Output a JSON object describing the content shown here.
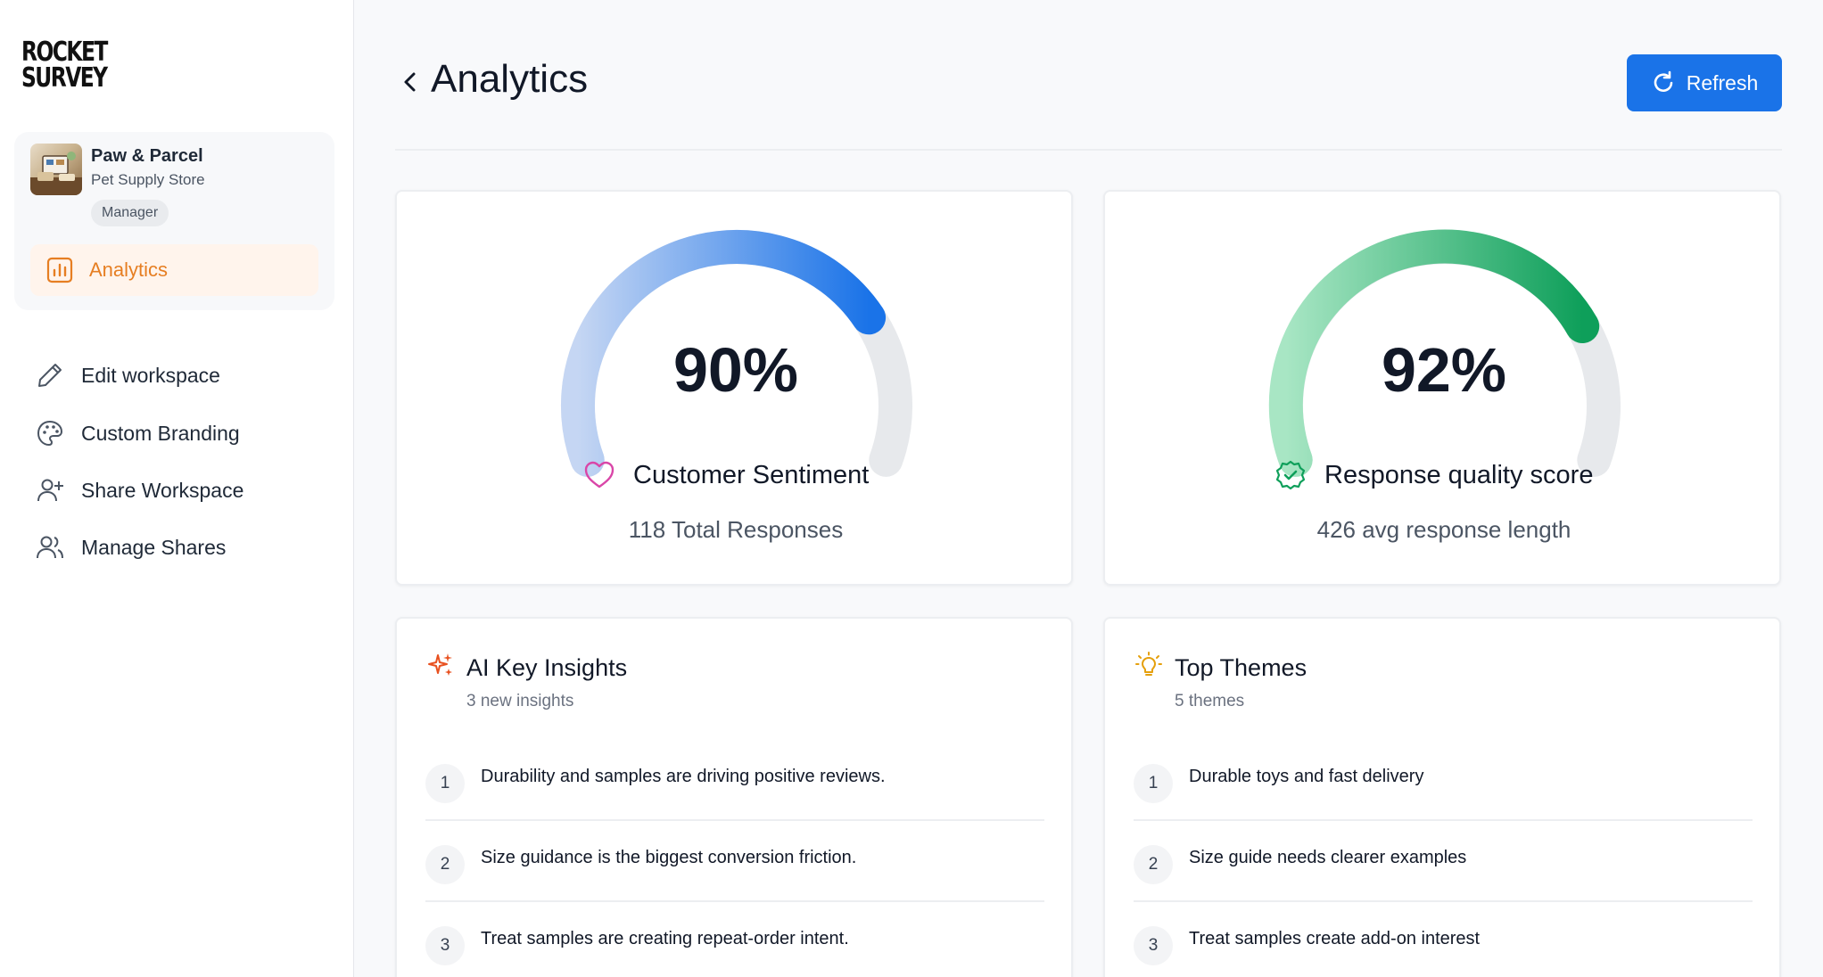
{
  "brand": {
    "logo_line1": "ROCKET",
    "logo_line2": "SURVEY",
    "accent": "#e67e22",
    "primary": "#1a73e8"
  },
  "workspace": {
    "name": "Paw & Parcel",
    "subtitle": "Pet Supply Store",
    "role": "Manager"
  },
  "sidebar": {
    "active": {
      "label": "Analytics",
      "icon": "bar-chart-icon"
    },
    "items": [
      {
        "label": "Edit workspace",
        "icon": "pencil-icon"
      },
      {
        "label": "Custom Branding",
        "icon": "palette-icon"
      },
      {
        "label": "Share Workspace",
        "icon": "user-plus-icon"
      },
      {
        "label": "Manage Shares",
        "icon": "users-icon"
      }
    ]
  },
  "header": {
    "title": "Analytics",
    "refresh_label": "Refresh"
  },
  "gauges": [
    {
      "value_text": "90%",
      "value": 0.9,
      "label": "Customer Sentiment",
      "sub": "118 Total Responses",
      "icon": "heart-icon",
      "color_start": "#c5d6f3",
      "color_end": "#1a73e8"
    },
    {
      "value_text": "92%",
      "value": 0.92,
      "label": "Response quality score",
      "sub": "426 avg response length",
      "icon": "badge-check-icon",
      "color_start": "#a8e6c4",
      "color_end": "#0e9f5a"
    }
  ],
  "insights": {
    "title": "AI Key Insights",
    "subtitle": "3 new insights",
    "icon": "sparkles-icon",
    "items": [
      {
        "num": "1",
        "text": "Durability and samples are driving positive reviews."
      },
      {
        "num": "2",
        "text": "Size guidance is the biggest conversion friction."
      },
      {
        "num": "3",
        "text": "Treat samples are creating repeat-order intent."
      }
    ]
  },
  "themes": {
    "title": "Top Themes",
    "subtitle": "5 themes",
    "icon": "lightbulb-icon",
    "items": [
      {
        "num": "1",
        "text": "Durable toys and fast delivery"
      },
      {
        "num": "2",
        "text": "Size guide needs clearer examples"
      },
      {
        "num": "3",
        "text": "Treat samples create add-on interest"
      }
    ]
  }
}
